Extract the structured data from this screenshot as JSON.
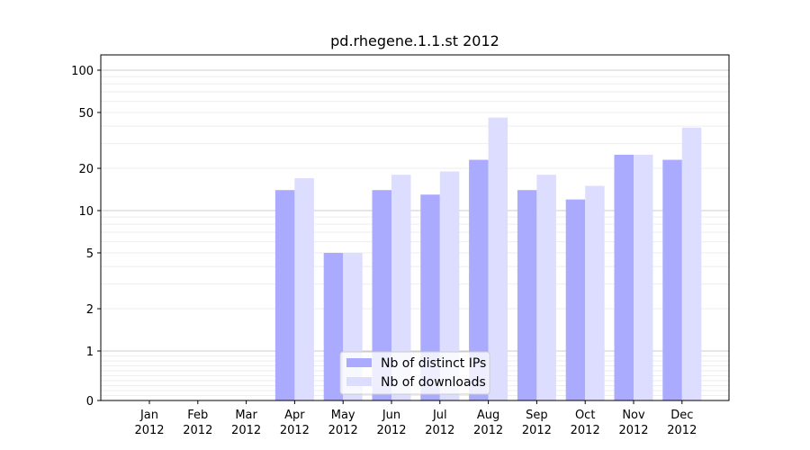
{
  "chart_data": {
    "type": "bar",
    "title": "pd.rhegene.1.1.st 2012",
    "xlabel": "",
    "ylabel": "",
    "yscale": "symlog",
    "ylim": [
      0,
      120
    ],
    "yticks": [
      0,
      1,
      2,
      5,
      10,
      20,
      50,
      100
    ],
    "grid": true,
    "legend_position": "lower-center",
    "categories": [
      [
        "Jan",
        "2012"
      ],
      [
        "Feb",
        "2012"
      ],
      [
        "Mar",
        "2012"
      ],
      [
        "Apr",
        "2012"
      ],
      [
        "May",
        "2012"
      ],
      [
        "Jun",
        "2012"
      ],
      [
        "Jul",
        "2012"
      ],
      [
        "Aug",
        "2012"
      ],
      [
        "Sep",
        "2012"
      ],
      [
        "Oct",
        "2012"
      ],
      [
        "Nov",
        "2012"
      ],
      [
        "Dec",
        "2012"
      ]
    ],
    "series": [
      {
        "name": "Nb of distinct IPs",
        "color": "#aaaaff",
        "values": [
          0,
          0,
          0,
          14,
          5,
          14,
          13,
          23,
          14,
          12,
          25,
          23
        ]
      },
      {
        "name": "Nb of downloads",
        "color": "#ddddff",
        "values": [
          0,
          0,
          0,
          17,
          5,
          18,
          19,
          46,
          18,
          15,
          25,
          39
        ]
      }
    ]
  }
}
